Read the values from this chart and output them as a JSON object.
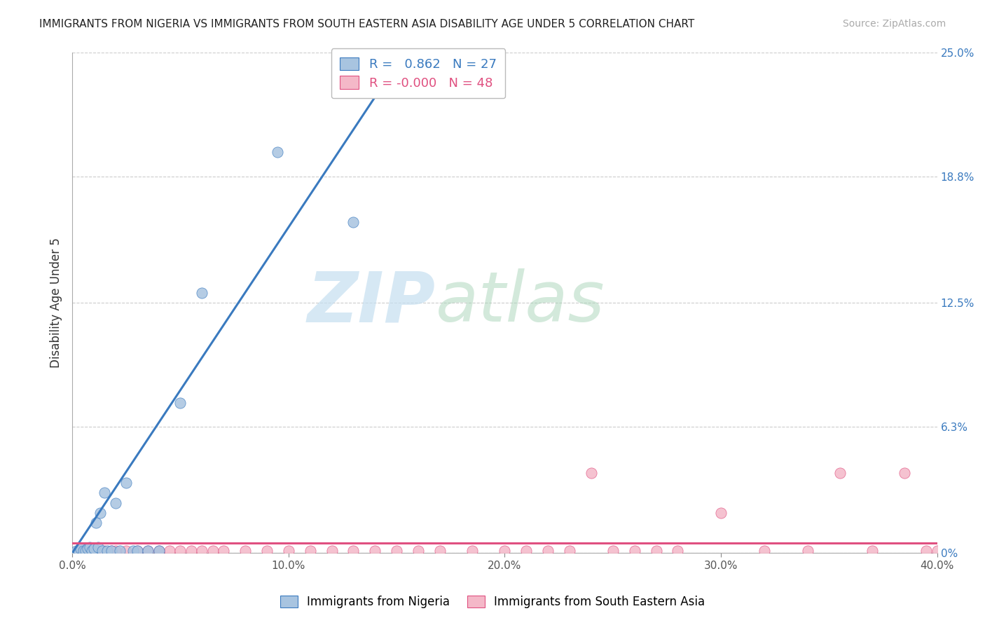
{
  "title": "IMMIGRANTS FROM NIGERIA VS IMMIGRANTS FROM SOUTH EASTERN ASIA DISABILITY AGE UNDER 5 CORRELATION CHART",
  "source": "Source: ZipAtlas.com",
  "ylabel": "Disability Age Under 5",
  "xlim": [
    0.0,
    0.4
  ],
  "ylim": [
    0.0,
    0.25
  ],
  "xticks": [
    0.0,
    0.1,
    0.2,
    0.3,
    0.4
  ],
  "xticklabels": [
    "0.0%",
    "10.0%",
    "20.0%",
    "30.0%",
    "40.0%"
  ],
  "yticks": [
    0.0,
    0.063,
    0.125,
    0.188,
    0.25
  ],
  "yticklabels": [
    "0%",
    "6.3%",
    "12.5%",
    "18.8%",
    "25.0%"
  ],
  "nigeria_R": 0.862,
  "nigeria_N": 27,
  "sea_R": -0.0,
  "sea_N": 48,
  "nigeria_color": "#a8c4e0",
  "sea_color": "#f4b8c8",
  "nigeria_line_color": "#3a7abf",
  "sea_line_color": "#e05080",
  "background_color": "#ffffff",
  "grid_color": "#cccccc",
  "watermark_zip": "ZIP",
  "watermark_atlas": "atlas",
  "watermark_color_zip": "#c8dff0",
  "watermark_color_atlas": "#b0d0c0",
  "nigeria_scatter_x": [
    0.002,
    0.003,
    0.004,
    0.005,
    0.006,
    0.007,
    0.008,
    0.009,
    0.01,
    0.011,
    0.012,
    0.013,
    0.014,
    0.015,
    0.016,
    0.018,
    0.02,
    0.022,
    0.025,
    0.028,
    0.03,
    0.035,
    0.04,
    0.05,
    0.06,
    0.095,
    0.13
  ],
  "nigeria_scatter_y": [
    0.001,
    0.001,
    0.002,
    0.001,
    0.001,
    0.002,
    0.003,
    0.001,
    0.002,
    0.015,
    0.003,
    0.02,
    0.001,
    0.03,
    0.001,
    0.001,
    0.025,
    0.001,
    0.035,
    0.001,
    0.001,
    0.001,
    0.001,
    0.075,
    0.13,
    0.2,
    0.165
  ],
  "nigeria_line_x": [
    0.0,
    0.155
  ],
  "nigeria_line_y": [
    0.0,
    0.252
  ],
  "sea_scatter_x": [
    0.003,
    0.004,
    0.005,
    0.007,
    0.008,
    0.01,
    0.012,
    0.015,
    0.018,
    0.02,
    0.025,
    0.03,
    0.035,
    0.04,
    0.045,
    0.05,
    0.055,
    0.06,
    0.065,
    0.07,
    0.08,
    0.09,
    0.1,
    0.11,
    0.12,
    0.13,
    0.14,
    0.15,
    0.16,
    0.17,
    0.185,
    0.2,
    0.22,
    0.24,
    0.26,
    0.28,
    0.3,
    0.32,
    0.34,
    0.355,
    0.37,
    0.385,
    0.395,
    0.4,
    0.21,
    0.23,
    0.25,
    0.27
  ],
  "sea_scatter_y": [
    0.001,
    0.001,
    0.001,
    0.001,
    0.001,
    0.001,
    0.001,
    0.001,
    0.001,
    0.001,
    0.001,
    0.001,
    0.001,
    0.001,
    0.001,
    0.001,
    0.001,
    0.001,
    0.001,
    0.001,
    0.001,
    0.001,
    0.001,
    0.001,
    0.001,
    0.001,
    0.001,
    0.001,
    0.001,
    0.001,
    0.001,
    0.001,
    0.001,
    0.04,
    0.001,
    0.001,
    0.02,
    0.001,
    0.001,
    0.04,
    0.001,
    0.04,
    0.001,
    0.001,
    0.001,
    0.001,
    0.001,
    0.001
  ],
  "sea_line_x": [
    0.0,
    0.4
  ],
  "sea_line_y": [
    0.005,
    0.005
  ]
}
